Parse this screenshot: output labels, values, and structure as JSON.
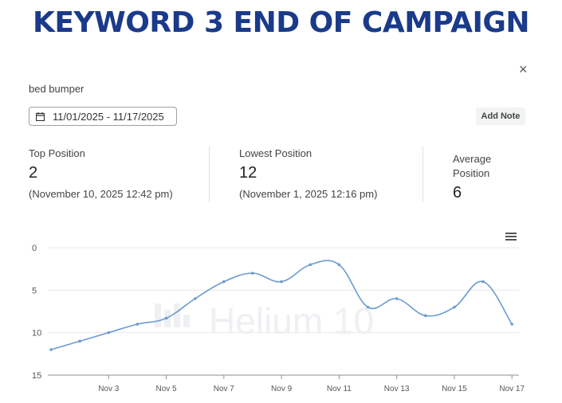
{
  "banner": {
    "title": "KEYWORD 3  END OF CAMPAIGN"
  },
  "header": {
    "keyword": "bed bumper",
    "close_label": "×"
  },
  "date_range": {
    "value": "11/01/2025 - 11/17/2025"
  },
  "add_note": {
    "label": "Add Note"
  },
  "stats": {
    "top": {
      "label": "Top Position",
      "value": "2",
      "sub": "(November 10, 2025 12:42 pm)"
    },
    "lowest": {
      "label": "Lowest Position",
      "value": "12",
      "sub": "(November 1, 2025 12:16 pm)"
    },
    "average": {
      "label_line1": "Average",
      "label_line2": "Position",
      "value": "6"
    }
  },
  "watermark": {
    "text": "Helium 10"
  },
  "chart_data": {
    "type": "line",
    "x_ticks": [
      "Nov 3",
      "Nov 5",
      "Nov 7",
      "Nov 9",
      "Nov 11",
      "Nov 13",
      "Nov 15",
      "Nov 17"
    ],
    "y_ticks": [
      "0",
      "5",
      "10",
      "15"
    ],
    "ylim": [
      0,
      15
    ],
    "y_reversed": true,
    "grid": true,
    "series": [
      {
        "color": "#6b9bcf",
        "points": [
          {
            "x": "Nov 1",
            "y": 12
          },
          {
            "x": "Nov 2",
            "y": 11
          },
          {
            "x": "Nov 3",
            "y": 10
          },
          {
            "x": "Nov 4",
            "y": 9
          },
          {
            "x": "Nov 5",
            "y": 8.3
          },
          {
            "x": "Nov 6",
            "y": 6
          },
          {
            "x": "Nov 7",
            "y": 4
          },
          {
            "x": "Nov 8",
            "y": 3
          },
          {
            "x": "Nov 9",
            "y": 4
          },
          {
            "x": "Nov 10",
            "y": 2
          },
          {
            "x": "Nov 11",
            "y": 2
          },
          {
            "x": "Nov 12",
            "y": 7
          },
          {
            "x": "Nov 13",
            "y": 6
          },
          {
            "x": "Nov 14",
            "y": 8
          },
          {
            "x": "Nov 15",
            "y": 7
          },
          {
            "x": "Nov 16",
            "y": 4
          },
          {
            "x": "Nov 17",
            "y": 9
          }
        ]
      }
    ]
  }
}
